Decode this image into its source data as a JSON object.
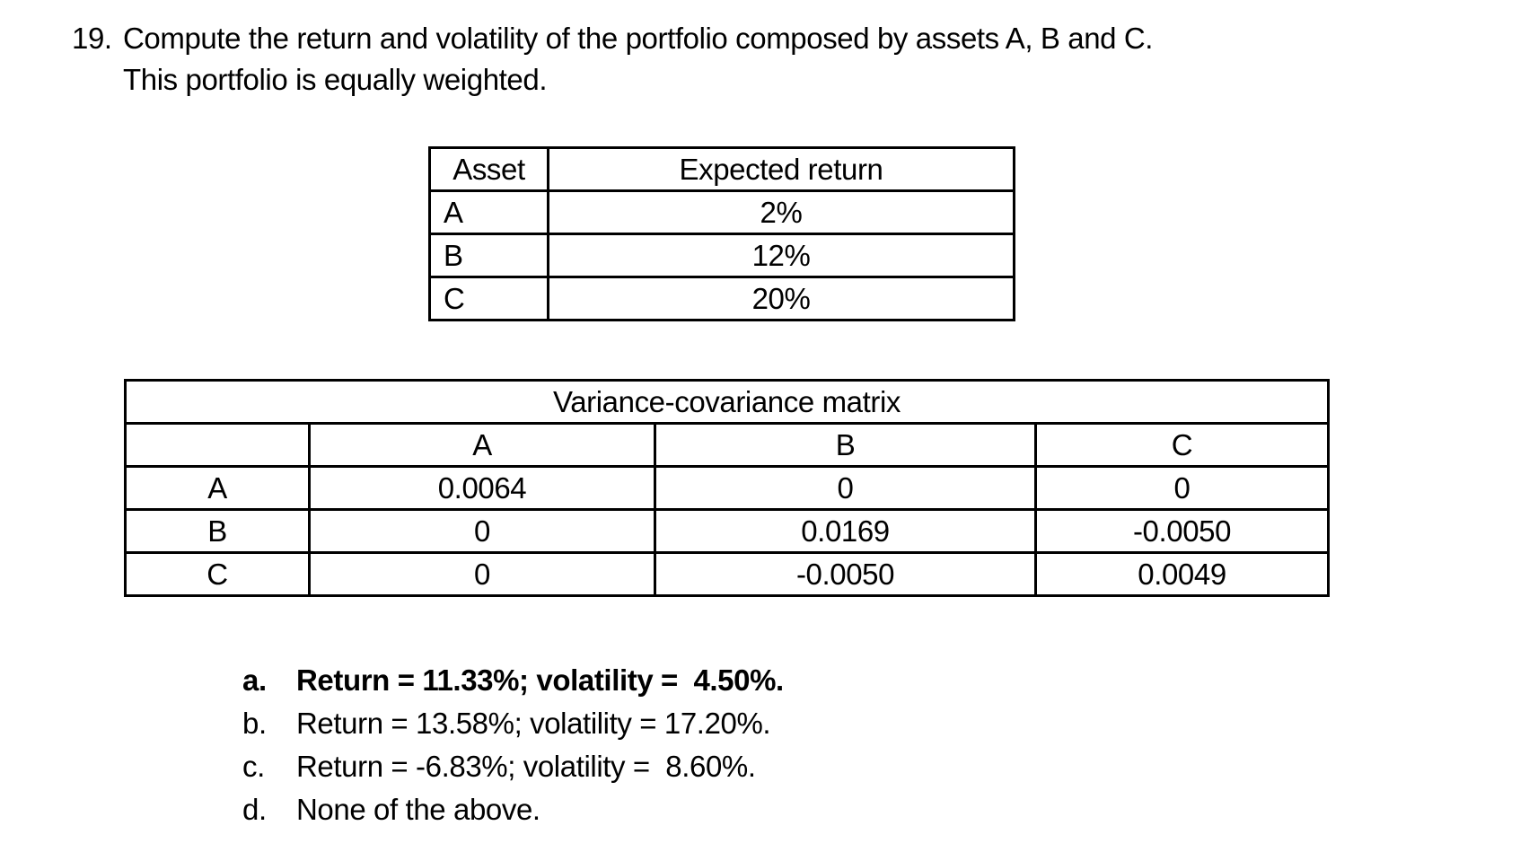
{
  "colors": {
    "text": "#000000",
    "background": "#ffffff"
  },
  "question": {
    "number": "19.",
    "line1": "Compute the return and volatility of the portfolio composed by assets A, B and C.",
    "line2": "This portfolio is equally weighted."
  },
  "asset_table": {
    "headers": [
      "Asset",
      "Expected return"
    ],
    "rows": [
      [
        "A",
        "2%"
      ],
      [
        "B",
        "12%"
      ],
      [
        "C",
        "20%"
      ]
    ]
  },
  "covariance_table": {
    "title": "Variance-covariance matrix",
    "col_headers": [
      "A",
      "B",
      "C"
    ],
    "rows": [
      {
        "label": "A",
        "values": [
          "0.0064",
          "0",
          "0"
        ]
      },
      {
        "label": "B",
        "values": [
          "0",
          "0.0169",
          "-0.0050"
        ]
      },
      {
        "label": "C",
        "values": [
          "0",
          "-0.0050",
          "0.0049"
        ]
      }
    ]
  },
  "options": [
    {
      "letter": "a.",
      "text": "Return = 11.33%; volatility =  4.50%.",
      "bold": true
    },
    {
      "letter": "b.",
      "text": "Return = 13.58%; volatility = 17.20%.",
      "bold": false
    },
    {
      "letter": "c.",
      "text": "Return = -6.83%; volatility =  8.60%.",
      "bold": false
    },
    {
      "letter": "d.",
      "text": "None of the above.",
      "bold": false
    }
  ]
}
